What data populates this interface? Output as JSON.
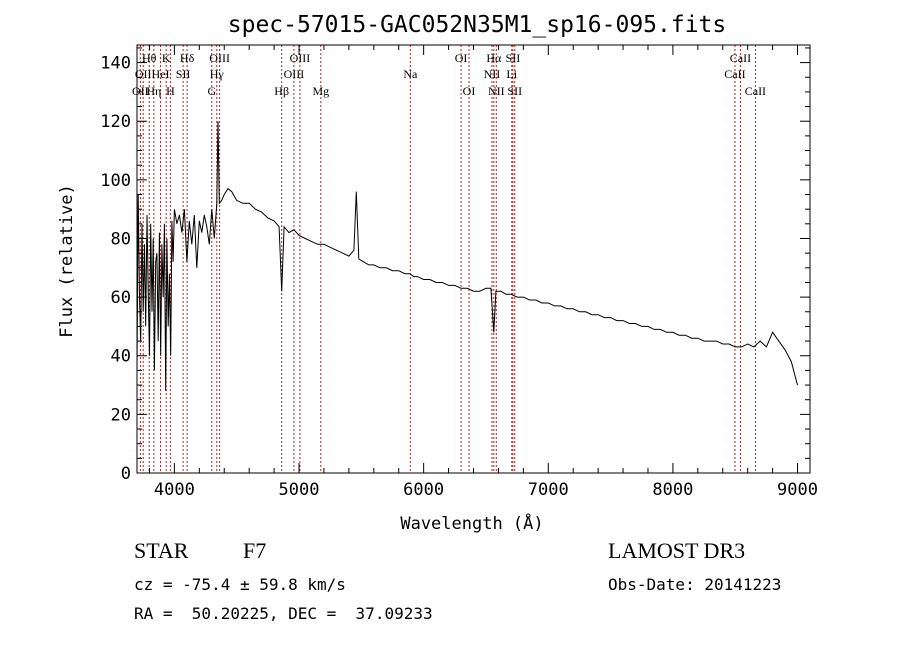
{
  "chart_data": {
    "type": "line",
    "title": "spec-57015-GAC052N35M1_sp16-095.fits",
    "xlabel": "Wavelength (Å)",
    "ylabel": "Flux (relative)",
    "xlim": [
      3700,
      9100
    ],
    "ylim": [
      0,
      146
    ],
    "xticks": [
      4000,
      5000,
      6000,
      7000,
      8000,
      9000
    ],
    "xtick_labels": [
      "4000",
      "5000",
      "6000",
      "7000",
      "8000",
      "9000"
    ],
    "yticks": [
      0,
      20,
      40,
      60,
      80,
      100,
      120,
      140
    ],
    "ytick_labels": [
      "0",
      "20",
      "40",
      "60",
      "80",
      "100",
      "120",
      "140"
    ],
    "series": [
      {
        "name": "spectrum",
        "x": [
          3700,
          3710,
          3720,
          3730,
          3740,
          3750,
          3760,
          3770,
          3780,
          3790,
          3800,
          3810,
          3820,
          3830,
          3840,
          3850,
          3860,
          3870,
          3880,
          3890,
          3900,
          3910,
          3920,
          3930,
          3940,
          3950,
          3960,
          3970,
          3980,
          3990,
          4000,
          4020,
          4040,
          4060,
          4080,
          4100,
          4120,
          4140,
          4160,
          4180,
          4200,
          4220,
          4240,
          4260,
          4280,
          4300,
          4320,
          4340,
          4350,
          4360,
          4380,
          4400,
          4430,
          4460,
          4500,
          4550,
          4600,
          4650,
          4700,
          4750,
          4800,
          4840,
          4861,
          4880,
          4920,
          4960,
          5000,
          5050,
          5100,
          5150,
          5200,
          5250,
          5300,
          5350,
          5400,
          5440,
          5460,
          5480,
          5520,
          5560,
          5600,
          5650,
          5700,
          5750,
          5800,
          5850,
          5890,
          5920,
          5950,
          6000,
          6050,
          6100,
          6150,
          6200,
          6250,
          6300,
          6350,
          6400,
          6450,
          6500,
          6540,
          6563,
          6580,
          6620,
          6660,
          6700,
          6750,
          6800,
          6850,
          6900,
          6950,
          7000,
          7050,
          7100,
          7150,
          7200,
          7250,
          7300,
          7350,
          7400,
          7450,
          7500,
          7550,
          7600,
          7650,
          7700,
          7750,
          7800,
          7850,
          7900,
          7950,
          8000,
          8050,
          8100,
          8150,
          8200,
          8250,
          8300,
          8350,
          8400,
          8450,
          8500,
          8550,
          8600,
          8650,
          8700,
          8750,
          8800,
          8850,
          8900,
          8950,
          9000
        ],
        "values": [
          35,
          95,
          60,
          45,
          85,
          55,
          78,
          50,
          88,
          62,
          40,
          85,
          55,
          80,
          35,
          72,
          75,
          45,
          82,
          40,
          78,
          60,
          85,
          28,
          80,
          50,
          68,
          40,
          86,
          72,
          90,
          85,
          88,
          82,
          90,
          72,
          86,
          78,
          88,
          70,
          86,
          82,
          88,
          84,
          78,
          90,
          80,
          92,
          120,
          92,
          93,
          95,
          97,
          96,
          93,
          92,
          92,
          90,
          89,
          87,
          86,
          84,
          62,
          84,
          82,
          83,
          81,
          80,
          79,
          78,
          78,
          77,
          76,
          75,
          74,
          76,
          96,
          73,
          72,
          71,
          71,
          70,
          70,
          69,
          69,
          68,
          68,
          67,
          67,
          66,
          66,
          65,
          65,
          64,
          64,
          63,
          63,
          62,
          62,
          63,
          63,
          48,
          62,
          62,
          61,
          61,
          60,
          60,
          59,
          59,
          58,
          58,
          57,
          57,
          56,
          56,
          55,
          55,
          54,
          54,
          53,
          53,
          52,
          52,
          51,
          51,
          50,
          50,
          49,
          49,
          48,
          48,
          47,
          47,
          46,
          46,
          45,
          45,
          45,
          44,
          44,
          43,
          43,
          44,
          43,
          45,
          43,
          48,
          45,
          42,
          38,
          30
        ]
      }
    ],
    "lines": [
      {
        "wavelength": 3727,
        "label": "OII",
        "row": 3
      },
      {
        "wavelength": 3750,
        "label": "OII",
        "row": 2
      },
      {
        "wavelength": 3798,
        "label": "Hθ",
        "row": 1
      },
      {
        "wavelength": 3835,
        "label": "Hη",
        "row": 3
      },
      {
        "wavelength": 3889,
        "label": "HeI",
        "row": 2
      },
      {
        "wavelength": 3934,
        "label": "K",
        "row": 1
      },
      {
        "wavelength": 3968,
        "label": "H",
        "row": 3
      },
      {
        "wavelength": 4070,
        "label": "SII",
        "row": 2
      },
      {
        "wavelength": 4102,
        "label": "Hδ",
        "row": 1
      },
      {
        "wavelength": 4300,
        "label": "G",
        "row": 3
      },
      {
        "wavelength": 4340,
        "label": "Hγ",
        "row": 2
      },
      {
        "wavelength": 4363,
        "label": "OIII",
        "row": 1
      },
      {
        "wavelength": 4861,
        "label": "Hβ",
        "row": 3
      },
      {
        "wavelength": 4959,
        "label": "OIII",
        "row": 2
      },
      {
        "wavelength": 5007,
        "label": "OIII",
        "row": 1
      },
      {
        "wavelength": 5175,
        "label": "Mg",
        "row": 3
      },
      {
        "wavelength": 5893,
        "label": "Na",
        "row": 2
      },
      {
        "wavelength": 6300,
        "label": "OI",
        "row": 1
      },
      {
        "wavelength": 6364,
        "label": "OI",
        "row": 3
      },
      {
        "wavelength": 6548,
        "label": "NII",
        "row": 2
      },
      {
        "wavelength": 6563,
        "label": "Hα",
        "row": 1
      },
      {
        "wavelength": 6583,
        "label": "NII",
        "row": 3
      },
      {
        "wavelength": 6707,
        "label": "Li",
        "row": 2
      },
      {
        "wavelength": 6716,
        "label": "SII",
        "row": 1
      },
      {
        "wavelength": 6731,
        "label": "SII",
        "row": 3
      },
      {
        "wavelength": 8498,
        "label": "CaII",
        "row": 2
      },
      {
        "wavelength": 8542,
        "label": "CaII",
        "row": 1
      },
      {
        "wavelength": 8662,
        "label": "CaII",
        "row": 3
      }
    ]
  },
  "info": {
    "object_class": "STAR",
    "subclass": "F7",
    "redshift": "cz = -75.4 ± 59.8 km/s",
    "coordinates": "RA =  50.20225, DEC =  37.09233",
    "survey": "LAMOST DR3",
    "obs_date": "Obs-Date: 20141223"
  },
  "colors": {
    "spectrum": "#000000",
    "line_markers": "#b22222",
    "axes": "#000000"
  }
}
